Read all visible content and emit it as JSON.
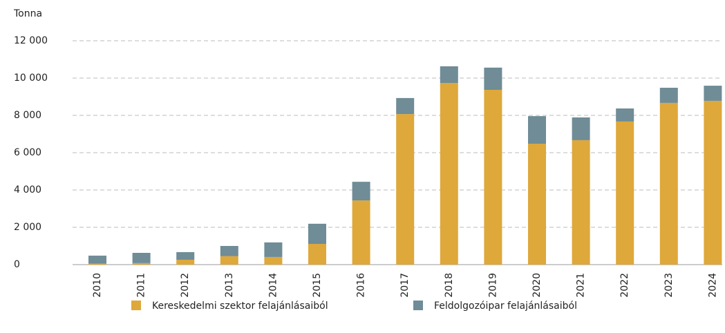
{
  "chart_data": {
    "type": "stacked_bar",
    "y_axis_label": "Tonna",
    "categories": [
      "2010",
      "2011",
      "2012",
      "2013",
      "2014",
      "2015",
      "2016",
      "2017",
      "2018",
      "2019",
      "2020",
      "2021",
      "2022",
      "2023",
      "2024"
    ],
    "series": [
      {
        "name": "Kereskedelmi szektor felajánlásaiból",
        "color": "#dea83a",
        "values": [
          50,
          80,
          260,
          450,
          410,
          1110,
          3440,
          8070,
          9740,
          9370,
          6480,
          6670,
          7670,
          8670,
          8780
        ]
      },
      {
        "name": "Feldolgozóipar felajánlásaiból",
        "color": "#6f8c97",
        "values": [
          430,
          550,
          410,
          550,
          780,
          1080,
          1000,
          860,
          890,
          1190,
          1480,
          1220,
          700,
          810,
          810
        ]
      }
    ],
    "ylim": [
      0,
      12000
    ],
    "yticks": [
      0,
      {
        "value": 2000,
        "label": "2 000"
      },
      {
        "value": 4000,
        "label": "4 000"
      },
      {
        "value": 6000,
        "label": "6 000"
      },
      {
        "value": 8000,
        "label": "8 000"
      },
      {
        "value": 10000,
        "label": "10 000"
      },
      {
        "value": 12000,
        "label": "12 000"
      }
    ],
    "grid": true
  }
}
